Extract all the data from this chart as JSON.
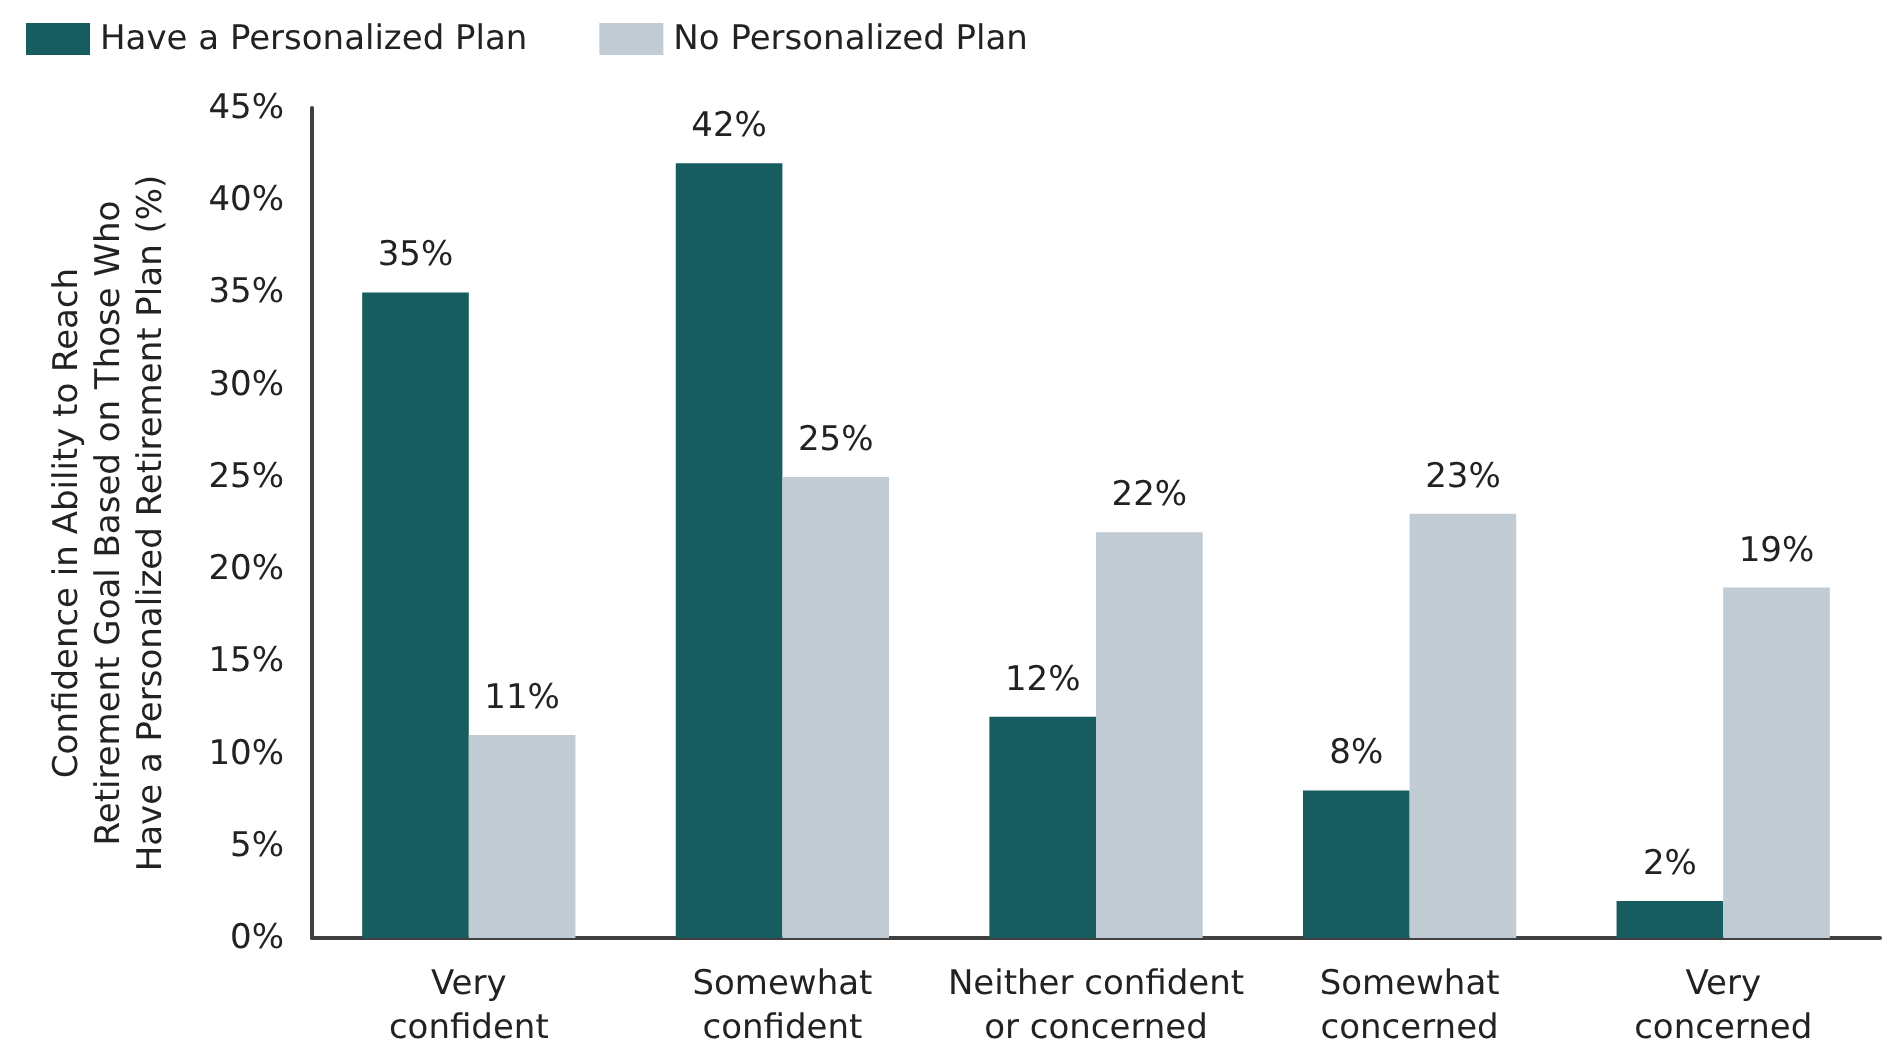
{
  "chart_data": {
    "type": "bar",
    "ylabel": "Confidence in Ability to Reach Retirement Goal Based on Those Who Have a Personalized Retirement Plan (%)",
    "categories": [
      "Very confident",
      "Somewhat confident",
      "Neither confident or concerned",
      "Somewhat concerned",
      "Very concerned"
    ],
    "series": [
      {
        "name": "Have a Personalized Plan",
        "color": "#175c5e",
        "values": [
          35,
          42,
          12,
          8,
          2
        ],
        "value_labels": [
          "35%",
          "42%",
          "12%",
          "8%",
          "2%"
        ]
      },
      {
        "name": "No Personalized Plan",
        "color": "#c1cbd4",
        "values": [
          11,
          25,
          22,
          23,
          19
        ],
        "value_labels": [
          "11%",
          "25%",
          "22%",
          "23%",
          "19%"
        ]
      }
    ],
    "ylim": [
      0,
      45
    ],
    "yticks": [
      {
        "value": 0,
        "label": "0%"
      },
      {
        "value": 5,
        "label": "5%"
      },
      {
        "value": 10,
        "label": "10%"
      },
      {
        "value": 15,
        "label": "15%"
      },
      {
        "value": 20,
        "label": "20%"
      },
      {
        "value": 25,
        "label": "25%"
      },
      {
        "value": 30,
        "label": "30%"
      },
      {
        "value": 35,
        "label": "35%"
      },
      {
        "value": 40,
        "label": "40%"
      },
      {
        "value": 45,
        "label": "45%"
      }
    ],
    "grid": false,
    "legend": "top left"
  }
}
